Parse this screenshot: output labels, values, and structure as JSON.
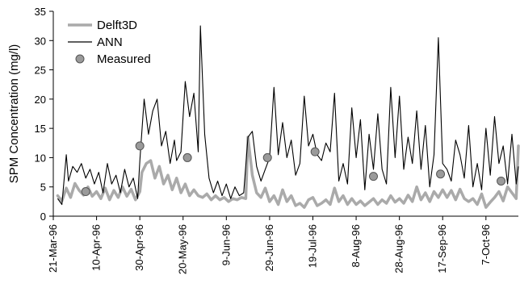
{
  "chart_data": {
    "type": "line",
    "title": "",
    "xlabel": "",
    "ylabel": "SPM Concentration (mg/l)",
    "ylim": [
      0,
      35
    ],
    "yticks": [
      0,
      5,
      10,
      15,
      20,
      25,
      30,
      35
    ],
    "xlim": [
      "1996-03-21",
      "1996-10-22"
    ],
    "xtick_labels": [
      "21-Mar-96",
      "10-Apr-96",
      "30-Apr-96",
      "20-May-96",
      "9-Jun-96",
      "29-Jun-96",
      "19-Jul-96",
      "8-Aug-96",
      "28-Aug-96",
      "17-Sep-96",
      "7-Oct-96"
    ],
    "xtick_dates": [
      "1996-03-21",
      "1996-04-10",
      "1996-04-30",
      "1996-05-20",
      "1996-06-09",
      "1996-06-29",
      "1996-07-19",
      "1996-08-08",
      "1996-08-28",
      "1996-09-17",
      "1996-10-07"
    ],
    "grid": false,
    "legend_position": "top-left",
    "colors": {
      "delft3d": "#aaaaaa",
      "ann": "#000000",
      "measured_fill": "#9a9a9a",
      "measured_edge": "#555555"
    },
    "series": [
      {
        "name": "Delft3D",
        "x": [
          "1996-03-23",
          "1996-03-25",
          "1996-03-27",
          "1996-03-29",
          "1996-03-31",
          "1996-04-02",
          "1996-04-04",
          "1996-04-06",
          "1996-04-08",
          "1996-04-10",
          "1996-04-12",
          "1996-04-14",
          "1996-04-16",
          "1996-04-18",
          "1996-04-20",
          "1996-04-22",
          "1996-04-24",
          "1996-04-26",
          "1996-04-28",
          "1996-04-30",
          "1996-05-01",
          "1996-05-03",
          "1996-05-05",
          "1996-05-07",
          "1996-05-09",
          "1996-05-11",
          "1996-05-13",
          "1996-05-15",
          "1996-05-17",
          "1996-05-19",
          "1996-05-21",
          "1996-05-23",
          "1996-05-25",
          "1996-05-27",
          "1996-05-29",
          "1996-05-31",
          "1996-06-02",
          "1996-06-04",
          "1996-06-06",
          "1996-06-08",
          "1996-06-10",
          "1996-06-12",
          "1996-06-14",
          "1996-06-16",
          "1996-06-18",
          "1996-06-19",
          "1996-06-21",
          "1996-06-23",
          "1996-06-25",
          "1996-06-27",
          "1996-06-29",
          "1996-07-01",
          "1996-07-03",
          "1996-07-05",
          "1996-07-07",
          "1996-07-09",
          "1996-07-11",
          "1996-07-13",
          "1996-07-15",
          "1996-07-17",
          "1996-07-19",
          "1996-07-21",
          "1996-07-23",
          "1996-07-25",
          "1996-07-27",
          "1996-07-29",
          "1996-07-31",
          "1996-08-02",
          "1996-08-04",
          "1996-08-06",
          "1996-08-08",
          "1996-08-10",
          "1996-08-12",
          "1996-08-14",
          "1996-08-16",
          "1996-08-18",
          "1996-08-20",
          "1996-08-22",
          "1996-08-24",
          "1996-08-26",
          "1996-08-28",
          "1996-08-30",
          "1996-09-01",
          "1996-09-03",
          "1996-09-05",
          "1996-09-07",
          "1996-09-09",
          "1996-09-11",
          "1996-09-13",
          "1996-09-15",
          "1996-09-17",
          "1996-09-19",
          "1996-09-21",
          "1996-09-23",
          "1996-09-25",
          "1996-09-27",
          "1996-09-29",
          "1996-10-01",
          "1996-10-03",
          "1996-10-05",
          "1996-10-07",
          "1996-10-09",
          "1996-10-11",
          "1996-10-13",
          "1996-10-15",
          "1996-10-17",
          "1996-10-19",
          "1996-10-21",
          "1996-10-22"
        ],
        "y": [
          3.5,
          2.6,
          4.8,
          3.2,
          5.6,
          4.4,
          3.6,
          5.0,
          3.4,
          4.2,
          3.0,
          4.8,
          2.8,
          4.4,
          3.2,
          5.0,
          3.4,
          4.6,
          2.8,
          4.2,
          7.5,
          9.0,
          9.5,
          6.5,
          8.5,
          5.5,
          7.0,
          4.5,
          6.5,
          4.0,
          5.5,
          3.5,
          4.5,
          3.5,
          3.2,
          3.8,
          2.8,
          3.5,
          2.8,
          3.2,
          2.5,
          3.0,
          2.8,
          3.2,
          3.0,
          13.5,
          7.0,
          4.0,
          3.2,
          4.8,
          2.5,
          3.5,
          2.0,
          4.5,
          2.5,
          3.5,
          1.8,
          2.2,
          1.5,
          2.8,
          3.2,
          1.8,
          2.2,
          2.8,
          2.0,
          4.8,
          2.5,
          3.5,
          2.0,
          3.0,
          2.0,
          2.6,
          1.8,
          2.4,
          3.0,
          2.0,
          2.8,
          2.2,
          3.5,
          2.4,
          3.0,
          2.2,
          3.6,
          2.5,
          5.0,
          2.8,
          4.0,
          2.5,
          4.2,
          3.2,
          4.5,
          3.2,
          4.4,
          2.8,
          4.6,
          3.0,
          2.5,
          3.0,
          2.0,
          3.8,
          1.5,
          2.4,
          3.2,
          4.2,
          2.6,
          5.0,
          4.0,
          3.0,
          12.0
        ]
      },
      {
        "name": "ANN",
        "x": [
          "1996-03-23",
          "1996-03-25",
          "1996-03-27",
          "1996-03-28",
          "1996-03-30",
          "1996-04-01",
          "1996-04-03",
          "1996-04-05",
          "1996-04-07",
          "1996-04-09",
          "1996-04-11",
          "1996-04-13",
          "1996-04-15",
          "1996-04-17",
          "1996-04-19",
          "1996-04-21",
          "1996-04-23",
          "1996-04-25",
          "1996-04-27",
          "1996-04-29",
          "1996-04-30",
          "1996-05-02",
          "1996-05-04",
          "1996-05-06",
          "1996-05-08",
          "1996-05-10",
          "1996-05-12",
          "1996-05-14",
          "1996-05-16",
          "1996-05-17",
          "1996-05-19",
          "1996-05-21",
          "1996-05-23",
          "1996-05-25",
          "1996-05-27",
          "1996-05-28",
          "1996-05-30",
          "1996-06-01",
          "1996-06-03",
          "1996-06-05",
          "1996-06-07",
          "1996-06-09",
          "1996-06-11",
          "1996-06-13",
          "1996-06-15",
          "1996-06-17",
          "1996-06-19",
          "1996-06-21",
          "1996-06-23",
          "1996-06-25",
          "1996-06-27",
          "1996-06-29",
          "1996-07-01",
          "1996-07-03",
          "1996-07-05",
          "1996-07-07",
          "1996-07-09",
          "1996-07-11",
          "1996-07-13",
          "1996-07-15",
          "1996-07-17",
          "1996-07-19",
          "1996-07-21",
          "1996-07-23",
          "1996-07-25",
          "1996-07-27",
          "1996-07-29",
          "1996-07-31",
          "1996-08-02",
          "1996-08-04",
          "1996-08-06",
          "1996-08-08",
          "1996-08-10",
          "1996-08-12",
          "1996-08-14",
          "1996-08-16",
          "1996-08-18",
          "1996-08-20",
          "1996-08-22",
          "1996-08-24",
          "1996-08-26",
          "1996-08-28",
          "1996-08-30",
          "1996-09-01",
          "1996-09-03",
          "1996-09-05",
          "1996-09-07",
          "1996-09-09",
          "1996-09-11",
          "1996-09-13",
          "1996-09-15",
          "1996-09-17",
          "1996-09-19",
          "1996-09-21",
          "1996-09-23",
          "1996-09-25",
          "1996-09-27",
          "1996-09-29",
          "1996-10-01",
          "1996-10-03",
          "1996-10-05",
          "1996-10-07",
          "1996-10-09",
          "1996-10-11",
          "1996-10-13",
          "1996-10-15",
          "1996-10-17",
          "1996-10-19",
          "1996-10-21",
          "1996-10-22"
        ],
        "y": [
          3.0,
          2.0,
          10.5,
          6.0,
          8.5,
          7.5,
          9.0,
          6.5,
          8.0,
          5.5,
          7.5,
          4.0,
          9.0,
          5.5,
          7.0,
          4.0,
          8.0,
          5.0,
          6.5,
          3.0,
          9.5,
          20.0,
          14.0,
          18.0,
          20.0,
          12.0,
          14.5,
          9.0,
          13.0,
          9.5,
          11.0,
          23.0,
          17.0,
          21.0,
          11.0,
          32.5,
          14.0,
          6.5,
          4.0,
          6.0,
          3.5,
          5.5,
          3.0,
          5.0,
          3.5,
          4.0,
          13.5,
          14.5,
          8.5,
          6.0,
          8.0,
          10.0,
          22.0,
          10.5,
          16.0,
          10.0,
          13.0,
          7.0,
          9.0,
          20.5,
          12.0,
          14.0,
          10.5,
          9.5,
          12.5,
          11.0,
          21.0,
          6.0,
          9.0,
          5.5,
          18.5,
          10.0,
          16.5,
          4.5,
          14.0,
          8.0,
          17.5,
          8.0,
          5.5,
          22.0,
          10.0,
          20.5,
          8.0,
          13.5,
          9.0,
          18.0,
          8.0,
          15.5,
          5.0,
          10.5,
          30.5,
          9.0,
          8.0,
          6.0,
          13.0,
          10.5,
          6.5,
          15.5,
          5.0,
          9.0,
          4.5,
          15.0,
          7.0,
          17.0,
          9.0,
          12.0,
          5.5,
          14.0,
          5.5,
          8.5
        ]
      },
      {
        "name": "Measured",
        "x": [
          "1996-04-05",
          "1996-04-30",
          "1996-05-22",
          "1996-06-28",
          "1996-07-20",
          "1996-08-16",
          "1996-09-16",
          "1996-10-14"
        ],
        "y": [
          4.2,
          12.0,
          10.0,
          10.0,
          11.0,
          6.8,
          7.2,
          6.0
        ]
      }
    ]
  }
}
